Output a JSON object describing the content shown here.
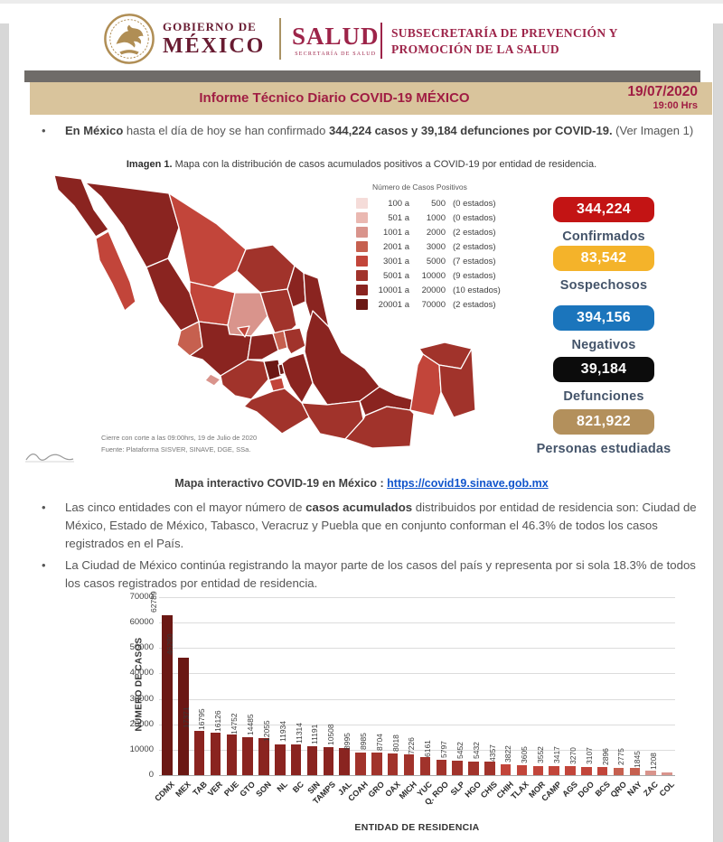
{
  "theme": {
    "brand_maroon": "#681b31",
    "salud_maroon": "#9d2449",
    "title_maroon": "#a01d43",
    "band_tan": "#d9c49c",
    "band_gray": "#6f6c69",
    "gold": "#ab9058",
    "label_slate": "#44546a",
    "link_blue": "#1155cc"
  },
  "header": {
    "eagle_icon": "mexico-eagle-seal",
    "brand_line1": "GOBIERNO DE",
    "brand_line2": "MÉXICO",
    "salud": "SALUD",
    "salud_sub": "SECRETARÍA DE SALUD",
    "subsecretaria_line1": "SUBSECRETARÍA DE PREVENCIÓN Y",
    "subsecretaria_line2": "PROMOCIÓN DE LA SALUD"
  },
  "title_bar": {
    "title": "Informe Técnico Diario COVID-19 MÉXICO",
    "date": "19/07/2020",
    "time": "19:00 Hrs"
  },
  "intro_bullet": {
    "segments": [
      {
        "t": "En México ",
        "b": true
      },
      {
        "t": "hasta el día de hoy se han confirmado ",
        "b": false
      },
      {
        "t": "344,224 casos y 39,184 defunciones por COVID-19.",
        "b": true
      },
      {
        "t": " (Ver Imagen 1)",
        "b": false
      }
    ]
  },
  "map_section": {
    "caption_segments": [
      {
        "t": "Imagen 1. ",
        "b": true
      },
      {
        "t": "Mapa con la distribución de casos acumulados positivos a COVID-19 por entidad de residencia.",
        "b": false
      }
    ],
    "legend": {
      "title": "Número de Casos Positivos",
      "rows": [
        {
          "from": "100 a",
          "to": "500",
          "count": "(0 estados)"
        },
        {
          "from": "501 a",
          "to": "1000",
          "count": "(0 estados)"
        },
        {
          "from": "1001 a",
          "to": "2000",
          "count": "(2 estados)"
        },
        {
          "from": "2001 a",
          "to": "3000",
          "count": "(2 estados)"
        },
        {
          "from": "3001 a",
          "to": "5000",
          "count": "(7 estados)"
        },
        {
          "from": "5001 a",
          "to": "10000",
          "count": "(9 estados)"
        },
        {
          "from": "10001 a",
          "to": "20000",
          "count": "(10 estados)"
        },
        {
          "from": "20001 a",
          "to": "70000",
          "count": "(2 estados)"
        }
      ]
    },
    "close_note": "Cierre con corte a las 09:00hrs, 19 de Julio de 2020",
    "source_note": "Fuente: Plataforma SISVER, SINAVE, DGE, SSa.",
    "states": [
      {
        "id": "BC",
        "bucket": 6
      },
      {
        "id": "BCS",
        "bucket": 4
      },
      {
        "id": "SON",
        "bucket": 6
      },
      {
        "id": "CHIH",
        "bucket": 4
      },
      {
        "id": "COAH",
        "bucket": 5
      },
      {
        "id": "NL",
        "bucket": 6
      },
      {
        "id": "TAMPS",
        "bucket": 6
      },
      {
        "id": "SIN",
        "bucket": 6
      },
      {
        "id": "DGO",
        "bucket": 4
      },
      {
        "id": "ZAC",
        "bucket": 2
      },
      {
        "id": "SLP",
        "bucket": 5
      },
      {
        "id": "NAY",
        "bucket": 3
      },
      {
        "id": "JAL",
        "bucket": 6
      },
      {
        "id": "AGS",
        "bucket": 4
      },
      {
        "id": "GTO",
        "bucket": 6
      },
      {
        "id": "QRO",
        "bucket": 3
      },
      {
        "id": "HGO",
        "bucket": 5
      },
      {
        "id": "MICH",
        "bucket": 5
      },
      {
        "id": "COL",
        "bucket": 2
      },
      {
        "id": "MEX",
        "bucket": 7
      },
      {
        "id": "CDMX",
        "bucket": 7
      },
      {
        "id": "MOR",
        "bucket": 4
      },
      {
        "id": "TLAX",
        "bucket": 4
      },
      {
        "id": "PUE",
        "bucket": 6
      },
      {
        "id": "VER",
        "bucket": 6
      },
      {
        "id": "GRO",
        "bucket": 5
      },
      {
        "id": "OAX",
        "bucket": 5
      },
      {
        "id": "CHIS",
        "bucket": 5
      },
      {
        "id": "TAB",
        "bucket": 6
      },
      {
        "id": "CAMP",
        "bucket": 4
      },
      {
        "id": "YUC",
        "bucket": 5
      },
      {
        "id": "QROO",
        "bucket": 5
      }
    ]
  },
  "buckets": {
    "bounds": [
      500,
      1000,
      2000,
      3000,
      5000,
      10000,
      20000,
      70000
    ],
    "colors": [
      "#f5dcd9",
      "#eab8b1",
      "#d9948c",
      "#c6604f",
      "#c2453a",
      "#a1332b",
      "#8a2420",
      "#6b1814"
    ]
  },
  "stats": [
    {
      "value": "344,224",
      "label": "Confirmados",
      "color": "#c31414"
    },
    {
      "value": "83,542",
      "label": "Sospechosos",
      "color": "#f4b32a"
    },
    {
      "value": "394,156",
      "label": "Negativos",
      "color": "#1b75bc"
    },
    {
      "value": "39,184",
      "label": "Defunciones",
      "color": "#0c0c0c"
    },
    {
      "value": "821,922",
      "label": "Personas estudiadas",
      "color": "#b3905c"
    }
  ],
  "map_link": {
    "prefix": "Mapa interactivo COVID-19 en México :",
    "url": "https://covid19.sinave.gob.mx"
  },
  "bullets": [
    {
      "segments": [
        {
          "t": "Las cinco entidades con el mayor número de ",
          "b": false
        },
        {
          "t": "casos acumulados",
          "b": true
        },
        {
          "t": " distribuidos por entidad de residencia son: Ciudad de México, Estado de México, Tabasco, Veracruz y Puebla que en conjunto conforman el 46.3% de todos los casos registrados en el País.",
          "b": false
        }
      ]
    },
    {
      "segments": [
        {
          "t": "La Ciudad de México continúa registrando la mayor parte de los casos del país y representa por si sola 18.3% de todos los casos registrados por entidad de residencia.",
          "b": false
        }
      ]
    }
  ],
  "chart_data": {
    "type": "bar",
    "title": "",
    "xlabel": "ENTIDAD DE RESIDENCIA",
    "ylabel": "NÚMERO DE CASOS",
    "ylim": [
      0,
      70000
    ],
    "ytick_step": 10000,
    "grid": true,
    "categories": [
      "CDMX",
      "MEX",
      "TAB",
      "VER",
      "PUE",
      "GTO",
      "SON",
      "NL",
      "BC",
      "SIN",
      "TAMPS",
      "JAL",
      "COAH",
      "GRO",
      "OAX",
      "MICH",
      "YUC",
      "Q. ROO",
      "SLP",
      "HGO",
      "CHIS",
      "CHIH",
      "TLAX",
      "MOR",
      "CAMP",
      "AGS",
      "DGO",
      "BCS",
      "QRO",
      "NAY",
      "ZAC",
      "COL"
    ],
    "values": [
      62789,
      46280,
      17371,
      16795,
      16126,
      14752,
      14485,
      12055,
      11934,
      11314,
      11191,
      10508,
      8995,
      8985,
      8704,
      8018,
      7226,
      6161,
      5797,
      5452,
      5432,
      4357,
      3822,
      3605,
      3552,
      3417,
      3270,
      3107,
      2896,
      2775,
      1845,
      1208
    ]
  }
}
